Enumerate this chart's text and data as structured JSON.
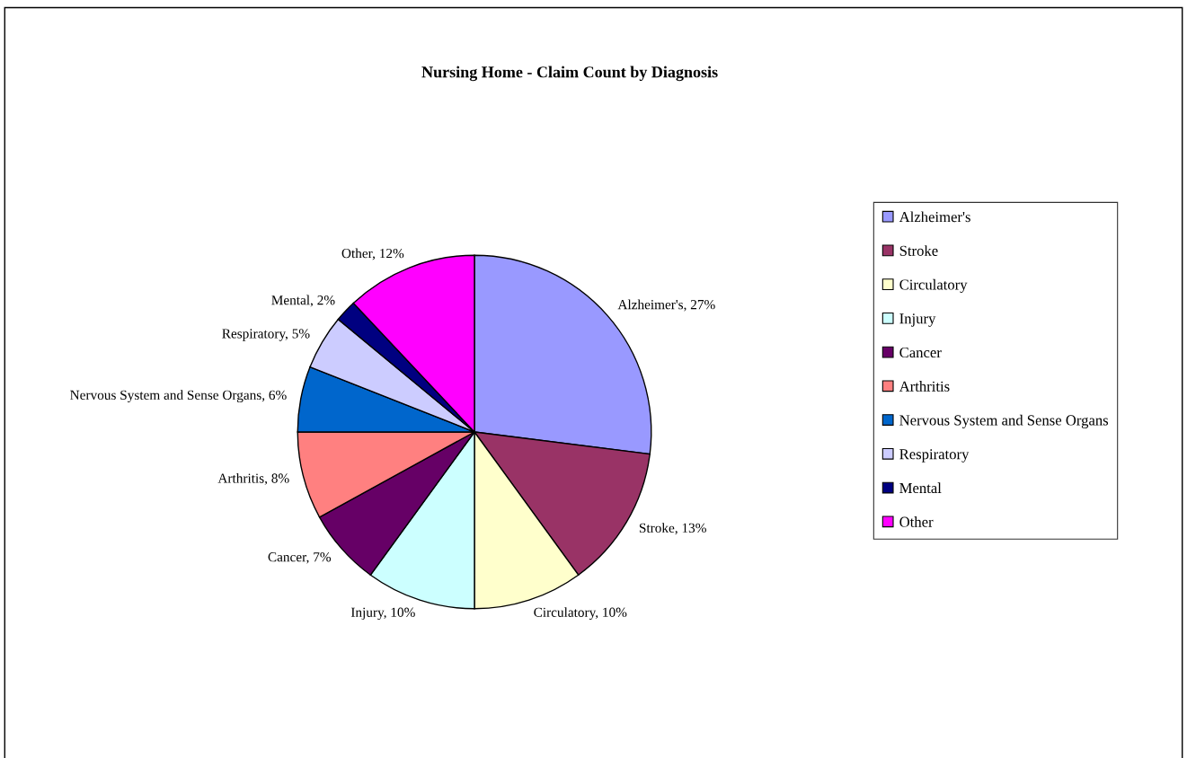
{
  "chart_data": {
    "type": "pie",
    "title": "Nursing Home - Claim Count by Diagnosis",
    "categories": [
      "Alzheimer's",
      "Stroke",
      "Circulatory",
      "Injury",
      "Cancer",
      "Arthritis",
      "Nervous System and Sense Organs",
      "Respiratory",
      "Mental",
      "Other"
    ],
    "values": [
      27,
      13,
      10,
      10,
      7,
      8,
      6,
      5,
      2,
      12
    ],
    "value_labels": [
      "Alzheimer's, 27%",
      "Stroke, 13%",
      "Circulatory, 10%",
      "Injury, 10%",
      "Cancer, 7%",
      "Arthritis, 8%",
      "Nervous System and Sense Organs, 6%",
      "Respiratory, 5%",
      "Mental, 2%",
      "Other, 12%"
    ],
    "colors": [
      "#9999ff",
      "#993366",
      "#ffffcc",
      "#ccffff",
      "#660066",
      "#ff8080",
      "#0066cc",
      "#ccccff",
      "#000080",
      "#ff00ff"
    ],
    "legend": "right"
  }
}
